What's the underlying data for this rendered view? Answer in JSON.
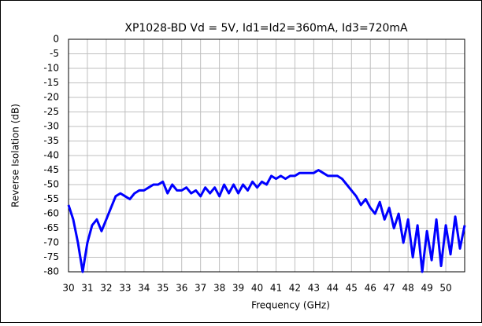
{
  "chart_data": {
    "type": "line",
    "title": "XP1028-BD Vd = 5V, Id1=Id2=360mA, Id3=720mA",
    "x_label": "Frequency (GHz)",
    "y_label": "Reverse Isolation (dB)",
    "x": [
      30,
      30.25,
      30.5,
      30.75,
      31,
      31.25,
      31.5,
      31.75,
      32,
      32.25,
      32.5,
      32.75,
      33,
      33.25,
      33.5,
      33.75,
      34,
      34.25,
      34.5,
      34.75,
      35,
      35.25,
      35.5,
      35.75,
      36,
      36.25,
      36.5,
      36.75,
      37,
      37.25,
      37.5,
      37.75,
      38,
      38.25,
      38.5,
      38.75,
      39,
      39.25,
      39.5,
      39.75,
      40,
      40.25,
      40.5,
      40.75,
      41,
      41.25,
      41.5,
      41.75,
      42,
      42.25,
      42.5,
      42.75,
      43,
      43.25,
      43.5,
      43.75,
      44,
      44.25,
      44.5,
      44.75,
      45,
      45.25,
      45.5,
      45.75,
      46,
      46.25,
      46.5,
      46.75,
      47,
      47.25,
      47.5,
      47.75,
      48,
      48.25,
      48.5,
      48.75,
      49,
      49.25,
      49.5,
      49.75,
      50,
      50.25,
      50.5,
      50.75,
      51
    ],
    "series": [
      {
        "color": "#0000ff",
        "values": [
          -57,
          -62,
          -70,
          -80,
          -70,
          -64,
          -62,
          -66,
          -62,
          -58,
          -54,
          -53,
          -54,
          -55,
          -53,
          -52,
          -52,
          -51,
          -50,
          -50,
          -49,
          -53,
          -50,
          -52,
          -52,
          -51,
          -53,
          -52,
          -54,
          -51,
          -53,
          -51,
          -54,
          -50,
          -53,
          -50,
          -53,
          -50,
          -52,
          -49,
          -51,
          -49,
          -50,
          -47,
          -48,
          -47,
          -48,
          -47,
          -47,
          -46,
          -46,
          -46,
          -46,
          -45,
          -46,
          -47,
          -47,
          -47,
          -48,
          -50,
          -52,
          -54,
          -57,
          -55,
          -58,
          -60,
          -56,
          -62,
          -58,
          -65,
          -60,
          -70,
          -62,
          -75,
          -64,
          -80,
          -66,
          -76,
          -62,
          -78,
          -64,
          -74,
          -61,
          -72,
          -64
        ]
      }
    ],
    "xlim": [
      30,
      51
    ],
    "xticks": [
      30,
      31,
      32,
      33,
      34,
      35,
      36,
      37,
      38,
      39,
      40,
      41,
      42,
      43,
      44,
      45,
      46,
      47,
      48,
      49,
      50
    ],
    "ylim": [
      -80,
      0
    ],
    "yticks": [
      0,
      -5,
      -10,
      -15,
      -20,
      -25,
      -30,
      -35,
      -40,
      -45,
      -50,
      -55,
      -60,
      -65,
      -70,
      -75,
      -80
    ],
    "grid": true
  }
}
